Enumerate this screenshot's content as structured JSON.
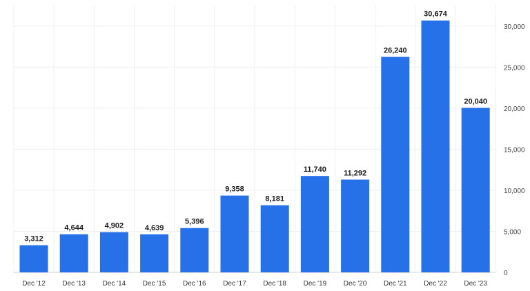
{
  "chart_data": {
    "type": "bar",
    "categories": [
      "Dec '12",
      "Dec '13",
      "Dec '14",
      "Dec '15",
      "Dec '16",
      "Dec '17",
      "Dec '18",
      "Dec '19",
      "Dec '20",
      "Dec '21",
      "Dec '22",
      "Dec '23"
    ],
    "values": [
      3312,
      4644,
      4902,
      4639,
      5396,
      9358,
      8181,
      11740,
      11292,
      26240,
      30674,
      20040
    ],
    "value_labels": [
      "3,312",
      "4,644",
      "4,902",
      "4,639",
      "5,396",
      "9,358",
      "8,181",
      "11,740",
      "11,292",
      "26,240",
      "30,674",
      "20,040"
    ],
    "y_ticks": [
      0,
      5000,
      10000,
      15000,
      20000,
      25000,
      30000
    ],
    "y_tick_labels": [
      "0",
      "5,000",
      "10,000",
      "15,000",
      "20,000",
      "25,000",
      "30,000"
    ],
    "ylim": [
      0,
      32500
    ],
    "y_axis_position": "right",
    "grid": true,
    "legend": "none",
    "title": "",
    "xlabel": "",
    "ylabel": "",
    "colors": {
      "bar": "#2670e8",
      "grid": "#efefef",
      "axis": "#cfcfcf"
    }
  }
}
